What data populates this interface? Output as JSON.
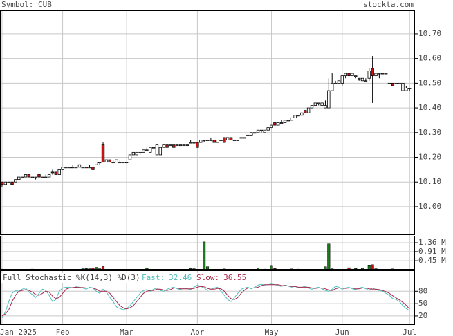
{
  "header": {
    "symbol": "Symbol: CUB",
    "site": "stockta.com"
  },
  "chart_data": [
    {
      "type": "candlestick",
      "xlim": [
        -0.6,
        122.6
      ],
      "xticks": [
        {
          "value": 0,
          "label": "Jan 2025"
        },
        {
          "value": 18,
          "label": "Feb"
        },
        {
          "value": 37,
          "label": "Mar"
        },
        {
          "value": 58,
          "label": "Apr"
        },
        {
          "value": 80,
          "label": "May"
        },
        {
          "value": 101,
          "label": "Jun"
        },
        {
          "value": 121,
          "label": "Jul"
        }
      ],
      "ylim": [
        9.885,
        10.795
      ],
      "yticks": [
        {
          "value": 10.0,
          "label": "10.00"
        },
        {
          "value": 10.1,
          "label": "10.10"
        },
        {
          "value": 10.2,
          "label": "10.20"
        },
        {
          "value": 10.3,
          "label": "10.30"
        },
        {
          "value": 10.4,
          "label": "10.40"
        },
        {
          "value": 10.5,
          "label": "10.50"
        },
        {
          "value": 10.6,
          "label": "10.60"
        },
        {
          "value": 10.7,
          "label": "10.70"
        }
      ],
      "grid": true,
      "up_color": "#ffffff",
      "down_color": "#cc1111",
      "candles": [
        [
          10.1,
          10.1,
          10.08,
          10.09
        ],
        [
          10.09,
          10.1,
          10.09,
          10.1
        ],
        [
          10.1,
          10.1,
          10.1,
          10.1
        ],
        [
          10.1,
          10.1,
          10.09,
          10.09
        ],
        [
          10.1,
          10.11,
          10.1,
          10.11
        ],
        [
          10.11,
          10.12,
          10.11,
          10.12
        ],
        [
          10.12,
          10.12,
          10.12,
          10.12
        ],
        [
          10.12,
          10.13,
          10.12,
          10.13
        ],
        [
          10.13,
          10.13,
          10.12,
          10.12
        ],
        [
          10.12,
          10.12,
          10.12,
          10.12
        ],
        [
          10.12,
          10.12,
          10.11,
          10.12
        ],
        [
          10.13,
          10.13,
          10.12,
          10.12
        ],
        [
          10.12,
          10.12,
          10.12,
          10.12
        ],
        [
          10.12,
          10.13,
          10.12,
          10.12
        ],
        [
          10.12,
          10.13,
          10.12,
          10.13
        ],
        [
          10.14,
          10.15,
          10.13,
          10.14
        ],
        [
          10.14,
          10.14,
          10.13,
          10.13
        ],
        [
          10.13,
          10.15,
          10.13,
          10.15
        ],
        [
          10.15,
          10.16,
          10.15,
          10.16
        ],
        [
          10.16,
          10.16,
          10.15,
          10.16
        ],
        [
          10.16,
          10.16,
          10.16,
          10.16
        ],
        [
          10.16,
          10.17,
          10.16,
          10.16
        ],
        [
          10.16,
          10.16,
          10.16,
          10.16
        ],
        [
          10.16,
          10.17,
          10.16,
          10.17
        ],
        [
          10.16,
          10.16,
          10.16,
          10.16
        ],
        [
          10.16,
          10.16,
          10.16,
          10.16
        ],
        [
          10.16,
          10.17,
          10.16,
          10.16
        ],
        [
          10.16,
          10.16,
          10.15,
          10.15
        ],
        [
          10.17,
          10.18,
          10.17,
          10.18
        ],
        [
          10.18,
          10.18,
          10.17,
          10.18
        ],
        [
          10.25,
          10.26,
          10.18,
          10.18
        ],
        [
          10.18,
          10.19,
          10.18,
          10.19
        ],
        [
          10.19,
          10.19,
          10.18,
          10.18
        ],
        [
          10.18,
          10.19,
          10.18,
          10.18
        ],
        [
          10.18,
          10.19,
          10.18,
          10.19
        ],
        [
          10.18,
          10.19,
          10.18,
          10.18
        ],
        [
          10.18,
          10.18,
          10.18,
          10.18
        ],
        [
          10.18,
          10.18,
          10.18,
          10.18
        ],
        [
          10.19,
          10.21,
          10.19,
          10.21
        ],
        [
          10.21,
          10.22,
          10.21,
          10.22
        ],
        [
          10.21,
          10.22,
          10.21,
          10.22
        ],
        [
          10.22,
          10.22,
          10.21,
          10.22
        ],
        [
          10.22,
          10.23,
          10.22,
          10.23
        ],
        [
          10.23,
          10.24,
          10.23,
          10.23
        ],
        [
          10.22,
          10.24,
          10.22,
          10.24
        ],
        [
          10.24,
          10.24,
          10.24,
          10.24
        ],
        [
          10.21,
          10.25,
          10.21,
          10.25
        ],
        [
          10.21,
          10.24,
          10.21,
          10.24
        ],
        [
          10.24,
          10.25,
          10.24,
          10.25
        ],
        [
          10.25,
          10.25,
          10.24,
          10.24
        ],
        [
          10.25,
          10.25,
          10.25,
          10.25
        ],
        [
          10.25,
          10.25,
          10.24,
          10.24
        ],
        [
          10.25,
          10.25,
          10.25,
          10.25
        ],
        [
          10.25,
          10.25,
          10.25,
          10.25
        ],
        [
          10.25,
          10.25,
          10.25,
          10.25
        ],
        [
          10.25,
          10.25,
          10.25,
          10.25
        ],
        [
          10.26,
          10.27,
          10.26,
          10.26
        ],
        [
          10.26,
          10.26,
          10.26,
          10.26
        ],
        [
          10.26,
          10.26,
          10.24,
          10.24
        ],
        [
          10.26,
          10.27,
          10.26,
          10.27
        ],
        [
          10.27,
          10.27,
          10.26,
          10.27
        ],
        [
          10.27,
          10.27,
          10.27,
          10.27
        ],
        [
          10.27,
          10.28,
          10.27,
          10.27
        ],
        [
          10.27,
          10.27,
          10.26,
          10.26
        ],
        [
          10.26,
          10.27,
          10.26,
          10.27
        ],
        [
          10.27,
          10.27,
          10.26,
          10.27
        ],
        [
          10.28,
          10.28,
          10.26,
          10.26
        ],
        [
          10.27,
          10.28,
          10.27,
          10.28
        ],
        [
          10.28,
          10.28,
          10.27,
          10.27
        ],
        [
          10.27,
          10.27,
          10.27,
          10.27
        ],
        [
          10.27,
          10.27,
          10.27,
          10.27
        ],
        [
          10.28,
          10.28,
          10.28,
          10.28
        ],
        [
          10.28,
          10.28,
          10.28,
          10.28
        ],
        [
          10.29,
          10.29,
          10.29,
          10.29
        ],
        [
          10.29,
          10.3,
          10.29,
          10.3
        ],
        [
          10.3,
          10.3,
          10.3,
          10.3
        ],
        [
          10.3,
          10.31,
          10.3,
          10.31
        ],
        [
          10.31,
          10.31,
          10.3,
          10.31
        ],
        [
          10.3,
          10.31,
          10.3,
          10.31
        ],
        [
          10.31,
          10.32,
          10.31,
          10.32
        ],
        [
          10.32,
          10.33,
          10.32,
          10.33
        ],
        [
          10.34,
          10.34,
          10.33,
          10.33
        ],
        [
          10.33,
          10.34,
          10.33,
          10.34
        ],
        [
          10.34,
          10.35,
          10.34,
          10.34
        ],
        [
          10.34,
          10.35,
          10.34,
          10.35
        ],
        [
          10.35,
          10.35,
          10.35,
          10.35
        ],
        [
          10.35,
          10.36,
          10.35,
          10.36
        ],
        [
          10.36,
          10.37,
          10.36,
          10.37
        ],
        [
          10.37,
          10.37,
          10.37,
          10.37
        ],
        [
          10.37,
          10.38,
          10.37,
          10.38
        ],
        [
          10.39,
          10.39,
          10.38,
          10.38
        ],
        [
          10.38,
          10.4,
          10.38,
          10.4
        ],
        [
          10.4,
          10.41,
          10.4,
          10.41
        ],
        [
          10.41,
          10.42,
          10.41,
          10.42
        ],
        [
          10.42,
          10.42,
          10.41,
          10.42
        ],
        [
          10.41,
          10.42,
          10.41,
          10.42
        ],
        [
          10.4,
          10.43,
          10.4,
          10.41
        ],
        [
          10.4,
          10.52,
          10.4,
          10.47
        ],
        [
          10.47,
          10.54,
          10.47,
          10.5
        ],
        [
          10.5,
          10.51,
          10.5,
          10.5
        ],
        [
          10.5,
          10.51,
          10.5,
          10.51
        ],
        [
          10.5,
          10.53,
          10.49,
          10.53
        ],
        [
          10.53,
          10.54,
          10.52,
          10.54
        ],
        [
          10.54,
          10.54,
          10.53,
          10.53
        ],
        [
          10.53,
          10.54,
          10.53,
          10.54
        ],
        [
          10.53,
          10.53,
          10.52,
          10.53
        ],
        [
          10.52,
          10.52,
          10.51,
          10.52
        ],
        [
          10.51,
          10.52,
          10.51,
          10.52
        ],
        [
          10.51,
          10.52,
          10.51,
          10.51
        ],
        [
          10.52,
          10.56,
          10.51,
          10.55
        ],
        [
          10.56,
          10.61,
          10.42,
          10.53
        ],
        [
          10.53,
          10.55,
          10.51,
          10.54
        ],
        [
          10.54,
          10.54,
          10.52,
          10.54
        ],
        [
          10.54,
          10.54,
          10.54,
          10.54
        ],
        [
          10.54,
          10.54,
          10.54,
          10.54
        ],
        [
          10.5,
          10.5,
          10.5,
          10.5
        ],
        [
          10.5,
          10.5,
          10.49,
          10.49
        ],
        [
          10.5,
          10.5,
          10.5,
          10.5
        ],
        [
          10.5,
          10.5,
          10.5,
          10.5
        ],
        [
          10.47,
          10.5,
          10.47,
          10.5
        ],
        [
          10.47,
          10.49,
          10.47,
          10.48
        ],
        [
          10.48,
          10.48,
          10.47,
          10.48
        ]
      ]
    },
    {
      "type": "volume",
      "ylim": [
        0,
        1.71
      ],
      "yticks": [
        {
          "value": 0.45,
          "label": "0.45 M"
        },
        {
          "value": 0.91,
          "label": "0.91 M"
        },
        {
          "value": 1.36,
          "label": "1.36 M"
        }
      ],
      "up_color": "#1c7a1c",
      "down_color": "#cc1111",
      "values": [
        0.03,
        0.02,
        0.01,
        0.02,
        0.01,
        0.01,
        0.02,
        0.01,
        0.01,
        0.03,
        0.02,
        0.01,
        0.01,
        0.01,
        0.02,
        0.01,
        0.01,
        0.01,
        0.02,
        0.01,
        0.01,
        0.01,
        0.01,
        0.01,
        0.05,
        0.06,
        0.05,
        0.08,
        0.12,
        0.05,
        0.16,
        0.02,
        0.02,
        0.01,
        0.01,
        0.01,
        0.01,
        0.02,
        0.01,
        0.01,
        0.01,
        0.01,
        0.01,
        0.07,
        0.01,
        0.01,
        0.01,
        0.01,
        0.01,
        0.02,
        0.01,
        0.01,
        0.01,
        0.01,
        0.01,
        0.01,
        0.06,
        0.05,
        0.02,
        0.01,
        1.4,
        0.15,
        0.02,
        0.01,
        0.01,
        0.01,
        0.04,
        0.01,
        0.01,
        0.01,
        0.02,
        0.01,
        0.01,
        0.01,
        0.01,
        0.01,
        0.08,
        0.01,
        0.03,
        0.01,
        0.18,
        0.06,
        0.01,
        0.01,
        0.02,
        0.01,
        0.04,
        0.01,
        0.03,
        0.01,
        0.01,
        0.01,
        0.01,
        0.01,
        0.02,
        0.01,
        0.15,
        1.3,
        0.05,
        0.01,
        0.01,
        0.02,
        0.01,
        0.1,
        0.03,
        0.06,
        0.02,
        0.08,
        0.01,
        0.2,
        0.25,
        0.05,
        0.02,
        0.01,
        0.01,
        0.01,
        0.04,
        0.01,
        0.01,
        0.01,
        0.02,
        0.01
      ]
    },
    {
      "type": "line",
      "title": "Full Stochastic %K(14,3) %D(3)",
      "ylim": [
        -2,
        131
      ],
      "yticks": [
        20,
        50,
        80
      ],
      "series": [
        {
          "name": "Fast:",
          "color": "#4fbcbc",
          "values": [
            15,
            30,
            55,
            75,
            82,
            80,
            85,
            88,
            78,
            72,
            65,
            75,
            85,
            82,
            70,
            55,
            60,
            80,
            88,
            90,
            90,
            88,
            91,
            90,
            88,
            85,
            90,
            88,
            80,
            75,
            85,
            78,
            65,
            55,
            42,
            38,
            35,
            38,
            45,
            55,
            65,
            75,
            82,
            84,
            80,
            85,
            88,
            82,
            80,
            85,
            88,
            90,
            86,
            84,
            88,
            86,
            84,
            90,
            95,
            92,
            88,
            82,
            85,
            88,
            90,
            80,
            70,
            60,
            55,
            65,
            75,
            85,
            88,
            90,
            86,
            90,
            95,
            97,
            95,
            96,
            98,
            96,
            94,
            92,
            95,
            93,
            90,
            92,
            88,
            90,
            92,
            88,
            85,
            88,
            90,
            86,
            82,
            80,
            85,
            92,
            90,
            85,
            88,
            90,
            86,
            84,
            88,
            90,
            86,
            82,
            88,
            84,
            82,
            80,
            75,
            70,
            62,
            60,
            55,
            45,
            38,
            32.46
          ]
        },
        {
          "name": "Slow:",
          "color": "#a8284a",
          "values": [
            20,
            25,
            35,
            55,
            70,
            80,
            82,
            84,
            82,
            78,
            72,
            70,
            75,
            80,
            78,
            68,
            62,
            65,
            75,
            85,
            88,
            89,
            90,
            89,
            89,
            88,
            88,
            88,
            85,
            80,
            80,
            80,
            75,
            65,
            55,
            45,
            40,
            37,
            40,
            45,
            55,
            65,
            75,
            80,
            82,
            82,
            85,
            85,
            83,
            82,
            84,
            88,
            88,
            86,
            86,
            86,
            86,
            87,
            90,
            92,
            91,
            87,
            85,
            85,
            87,
            86,
            80,
            70,
            62,
            60,
            65,
            75,
            83,
            88,
            88,
            88,
            90,
            94,
            96,
            96,
            96,
            96,
            96,
            94,
            94,
            93,
            92,
            92,
            90,
            90,
            90,
            90,
            88,
            87,
            88,
            88,
            86,
            83,
            82,
            86,
            88,
            88,
            87,
            88,
            88,
            86,
            86,
            88,
            88,
            86,
            85,
            85,
            84,
            82,
            79,
            75,
            69,
            64,
            59,
            53,
            46,
            36.55
          ]
        }
      ]
    }
  ]
}
